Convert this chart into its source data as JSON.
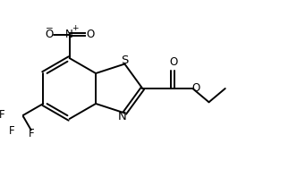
{
  "bg_color": "#ffffff",
  "line_color": "#000000",
  "lw": 1.4,
  "fs": 8.5,
  "bl": 0.36,
  "ox": 0.72,
  "oy": 0.0,
  "xlim": [
    -0.15,
    2.85
  ],
  "ylim": [
    -1.05,
    1.05
  ]
}
